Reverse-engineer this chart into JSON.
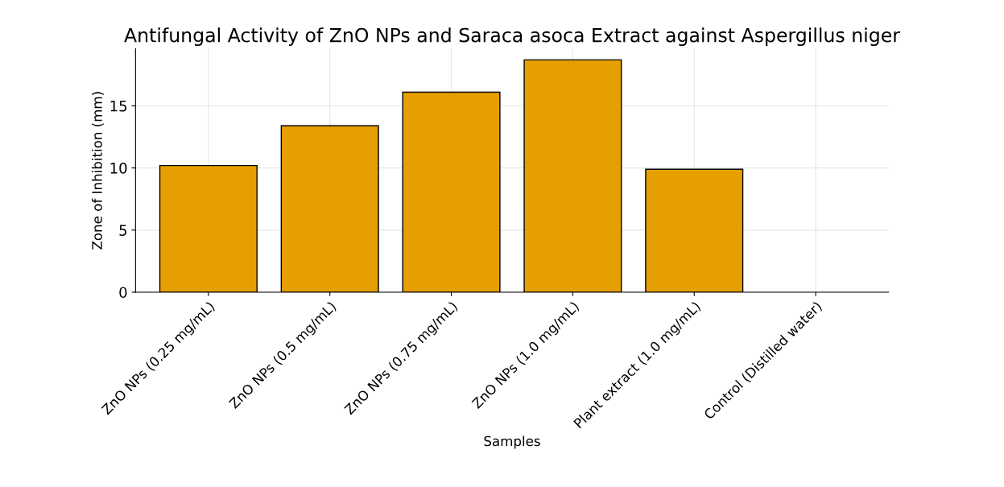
{
  "chart_data": {
    "type": "bar",
    "title": "Antifungal Activity of ZnO NPs and Saraca asoca Extract against Aspergillus niger",
    "xlabel": "Samples",
    "ylabel": "Zone of Inhibition (mm)",
    "categories": [
      "ZnO NPs (0.25 mg/mL)",
      "ZnO NPs (0.5 mg/mL)",
      "ZnO NPs (0.75 mg/mL)",
      "ZnO NPs (1.0 mg/mL)",
      "Plant extract (1.0 mg/mL)",
      "Control (Distilled water)"
    ],
    "values": [
      10.2,
      13.4,
      16.1,
      18.7,
      9.9,
      0
    ],
    "color": "#e69f00",
    "ylim": [
      0,
      19.6
    ],
    "yticks": [
      0,
      5,
      10,
      15
    ],
    "grid": true
  }
}
